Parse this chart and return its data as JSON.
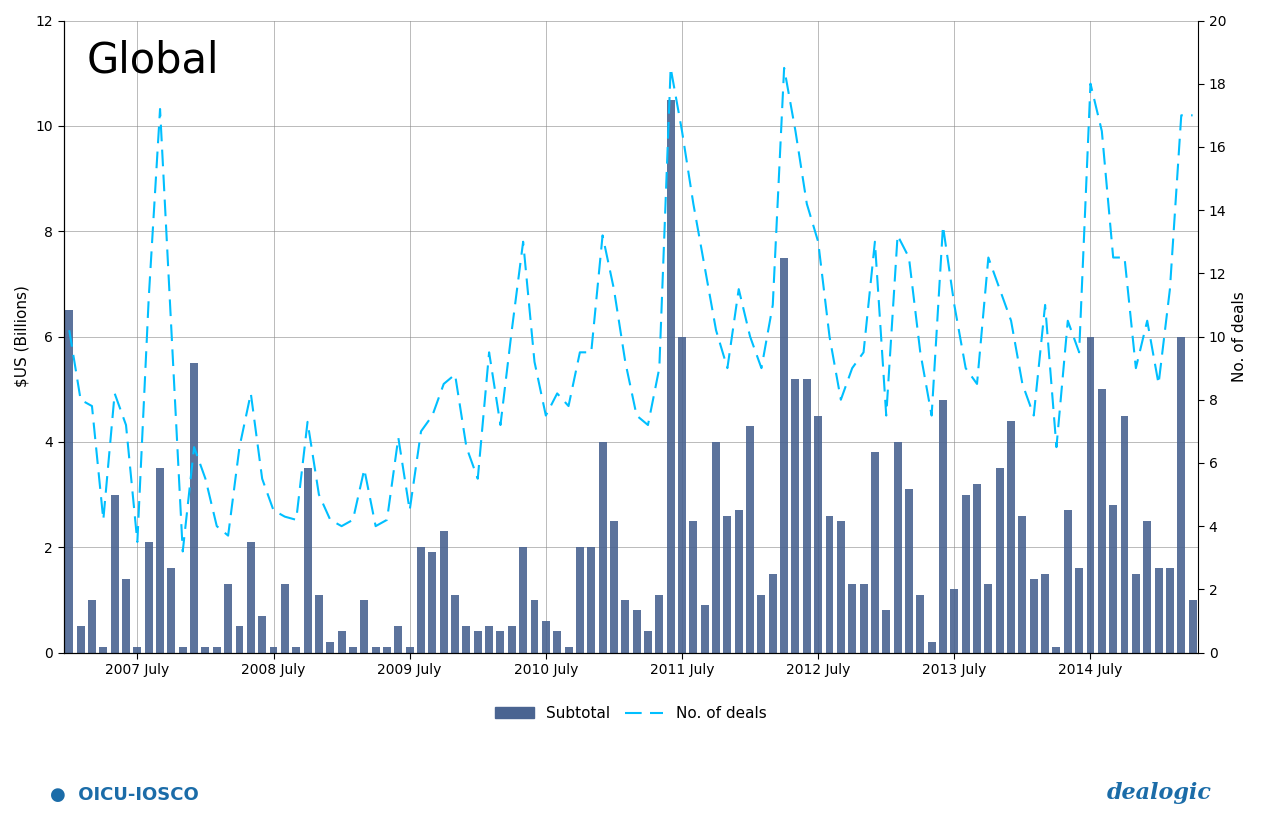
{
  "title": "Global",
  "ylabel_left": "$US (Billions)",
  "ylabel_right": "No. of deals",
  "ylim_left": [
    0,
    12
  ],
  "ylim_right": [
    0,
    20
  ],
  "yticks_left": [
    0,
    2,
    4,
    6,
    8,
    10,
    12
  ],
  "yticks_right": [
    0,
    2,
    4,
    6,
    8,
    10,
    12,
    14,
    16,
    18,
    20
  ],
  "bar_color": "#4a6491",
  "line_color": "#00bfff",
  "background_color": "#ffffff",
  "x_tick_labels": [
    "2007 July",
    "2008 July",
    "2009 July",
    "2010 July",
    "2011 July",
    "2012 July",
    "2013 July",
    "2014 July"
  ],
  "subtotal": [
    6.5,
    0.5,
    1.0,
    0.1,
    3.0,
    1.4,
    0.1,
    2.1,
    3.5,
    1.6,
    0.1,
    5.5,
    0.1,
    0.1,
    1.3,
    0.5,
    2.1,
    0.7,
    0.1,
    1.3,
    0.1,
    3.5,
    1.1,
    0.2,
    0.4,
    0.1,
    1.0,
    0.1,
    0.1,
    0.5,
    0.1,
    2.0,
    1.9,
    2.3,
    1.1,
    0.5,
    0.4,
    0.5,
    0.4,
    0.5,
    2.0,
    1.0,
    0.6,
    0.4,
    0.1,
    2.0,
    2.0,
    4.0,
    2.5,
    1.0,
    0.8,
    0.4,
    1.1,
    10.5,
    6.0,
    2.5,
    0.9,
    4.0,
    2.6,
    2.7,
    4.3,
    1.1,
    1.5,
    7.5,
    5.2,
    5.2,
    4.5,
    2.6,
    2.5,
    1.3,
    1.3,
    3.8,
    0.8,
    4.0,
    3.1,
    1.1,
    0.2,
    4.8,
    1.2,
    3.0,
    3.2,
    1.3,
    3.5,
    4.4,
    2.6,
    1.4,
    1.5,
    0.1,
    2.7,
    1.6,
    6.0,
    5.0,
    2.8,
    4.5,
    1.5,
    2.5,
    1.6,
    1.6,
    6.0,
    1.0
  ],
  "no_of_deals": [
    10.2,
    8.0,
    7.8,
    4.2,
    8.2,
    7.2,
    3.5,
    11.2,
    17.2,
    10.2,
    3.2,
    6.5,
    5.5,
    4.0,
    3.7,
    6.5,
    8.2,
    5.5,
    4.5,
    4.3,
    4.2,
    7.3,
    5.0,
    4.2,
    4.0,
    4.2,
    5.8,
    4.0,
    4.2,
    6.8,
    4.5,
    7.0,
    7.5,
    8.5,
    8.8,
    6.5,
    5.5,
    9.5,
    7.2,
    10.2,
    13.0,
    9.2,
    7.5,
    8.2,
    7.8,
    9.5,
    9.5,
    13.2,
    11.5,
    9.2,
    7.5,
    7.2,
    9.0,
    18.5,
    16.5,
    14.2,
    12.2,
    10.2,
    9.0,
    11.5,
    10.0,
    9.0,
    11.0,
    18.5,
    16.5,
    14.2,
    13.0,
    10.0,
    8.0,
    9.0,
    9.5,
    13.0,
    7.5,
    13.2,
    12.5,
    9.5,
    7.5,
    13.5,
    11.0,
    9.0,
    8.5,
    12.5,
    11.5,
    10.5,
    8.5,
    7.5,
    11.0,
    6.5,
    10.5,
    9.5,
    18.0,
    16.5,
    12.5,
    12.5,
    9.0,
    10.5,
    8.5,
    11.5,
    17.0,
    17.0
  ]
}
